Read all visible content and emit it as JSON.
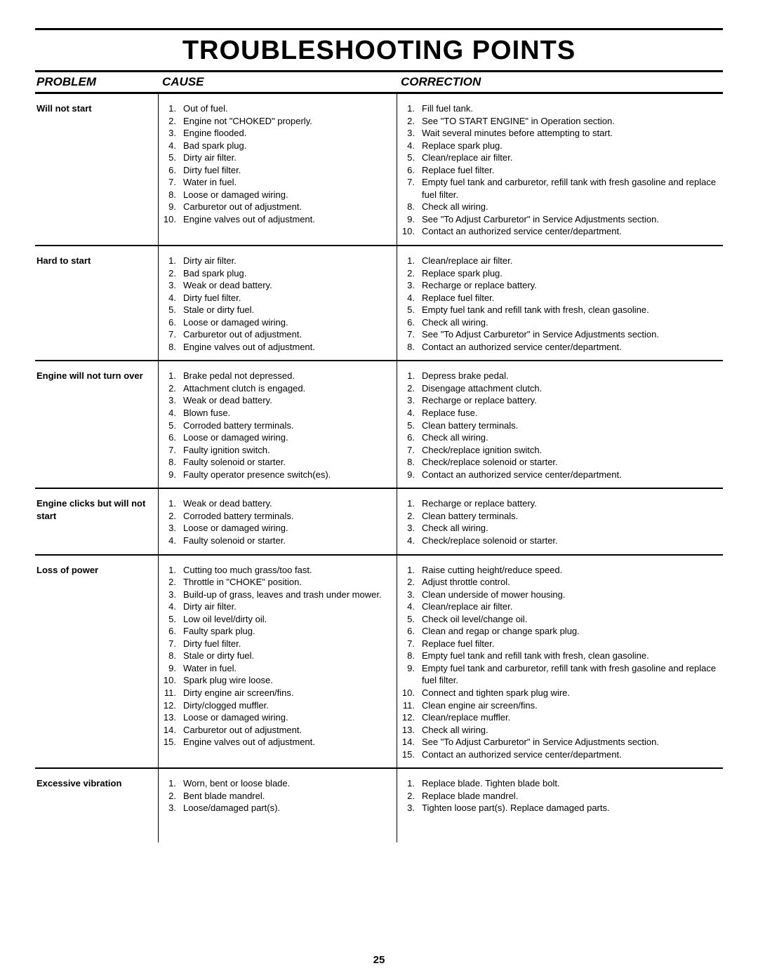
{
  "title": "TROUBLESHOOTING POINTS",
  "headers": {
    "problem": "PROBLEM",
    "cause": "CAUSE",
    "correction": "CORRECTION"
  },
  "page_number": "25",
  "sections": [
    {
      "problem": "Will not start",
      "causes": [
        "Out of fuel.",
        "Engine not \"CHOKED\" properly.",
        "Engine flooded.",
        "Bad spark plug.",
        "Dirty air filter.",
        "Dirty fuel filter.",
        "Water in fuel.",
        "Loose or damaged wiring.",
        "Carburetor out of adjustment.",
        "Engine valves out of adjustment."
      ],
      "corrections": [
        "Fill fuel tank.",
        "See \"TO START ENGINE\" in Operation section.",
        "Wait several minutes before attempting to start.",
        "Replace spark plug.",
        "Clean/replace air filter.",
        "Replace fuel filter.",
        "Empty fuel tank and carburetor, refill tank with fresh gasoline and replace fuel filter.",
        "Check all wiring.",
        "See \"To Adjust Carburetor\" in Service Adjustments section.",
        "Contact an authorized service center/department."
      ]
    },
    {
      "problem": "Hard to start",
      "causes": [
        "Dirty air filter.",
        "Bad spark plug.",
        "Weak or dead battery.",
        "Dirty fuel filter.",
        "Stale or dirty fuel.",
        "Loose or damaged wiring.",
        "Carburetor out of adjustment.",
        "Engine valves out of adjustment."
      ],
      "corrections": [
        "Clean/replace air filter.",
        "Replace spark plug.",
        "Recharge or replace battery.",
        "Replace fuel filter.",
        "Empty fuel tank and refill tank with fresh, clean gasoline.",
        "Check all wiring.",
        "See \"To Adjust Carburetor\" in Service Adjustments section.",
        "Contact an authorized service center/department."
      ]
    },
    {
      "problem": "Engine will not turn over",
      "causes": [
        "Brake pedal not depressed.",
        "Attachment clutch is engaged.",
        "Weak or dead battery.",
        "Blown fuse.",
        "Corroded battery terminals.",
        "Loose or damaged wiring.",
        "Faulty ignition switch.",
        "Faulty solenoid or starter.",
        "Faulty operator presence switch(es)."
      ],
      "corrections": [
        "Depress brake pedal.",
        "Disengage attachment clutch.",
        "Recharge or replace battery.",
        "Replace fuse.",
        "Clean battery terminals.",
        "Check all wiring.",
        "Check/replace ignition switch.",
        "Check/replace solenoid or starter.",
        "Contact an authorized service center/department."
      ]
    },
    {
      "problem": "Engine clicks but will not start",
      "causes": [
        "Weak or dead battery.",
        "Corroded battery terminals.",
        "Loose or damaged wiring.",
        "Faulty solenoid or starter."
      ],
      "corrections": [
        "Recharge or replace battery.",
        "Clean battery terminals.",
        "Check all wiring.",
        "Check/replace solenoid or starter."
      ]
    },
    {
      "problem": "Loss of power",
      "causes": [
        "Cutting too much grass/too fast.",
        "Throttle in \"CHOKE\" position.",
        "Build-up of grass, leaves and trash under mower.",
        "Dirty air filter.",
        "Low oil level/dirty oil.",
        "Faulty spark plug.",
        "Dirty fuel filter.",
        "Stale or dirty fuel.",
        "Water in fuel.",
        "Spark plug wire loose.",
        "Dirty engine air screen/fins.",
        "Dirty/clogged muffler.",
        "Loose or damaged wiring.",
        "Carburetor out of adjustment.",
        "Engine valves out of adjustment."
      ],
      "corrections": [
        "Raise cutting height/reduce speed.",
        "Adjust throttle control.",
        "Clean underside of mower housing.",
        "Clean/replace air filter.",
        "Check oil level/change oil.",
        "Clean and regap or change spark plug.",
        "Replace fuel filter.",
        "Empty fuel tank and refill tank with fresh, clean gasoline.",
        "Empty fuel tank and carburetor, refill tank with fresh gasoline and replace fuel filter.",
        "Connect and tighten spark plug wire.",
        "Clean engine air screen/fins.",
        "Clean/replace muffler.",
        "Check all wiring.",
        "See \"To Adjust Carburetor\" in Service Adjustments section.",
        "Contact an authorized service center/department."
      ]
    },
    {
      "problem": "Excessive vibration",
      "causes": [
        "Worn, bent or loose blade.",
        "Bent blade mandrel.",
        "Loose/damaged part(s)."
      ],
      "corrections": [
        "Replace blade.  Tighten blade bolt.",
        "Replace blade mandrel.",
        "Tighten loose part(s).  Replace damaged parts."
      ]
    }
  ]
}
